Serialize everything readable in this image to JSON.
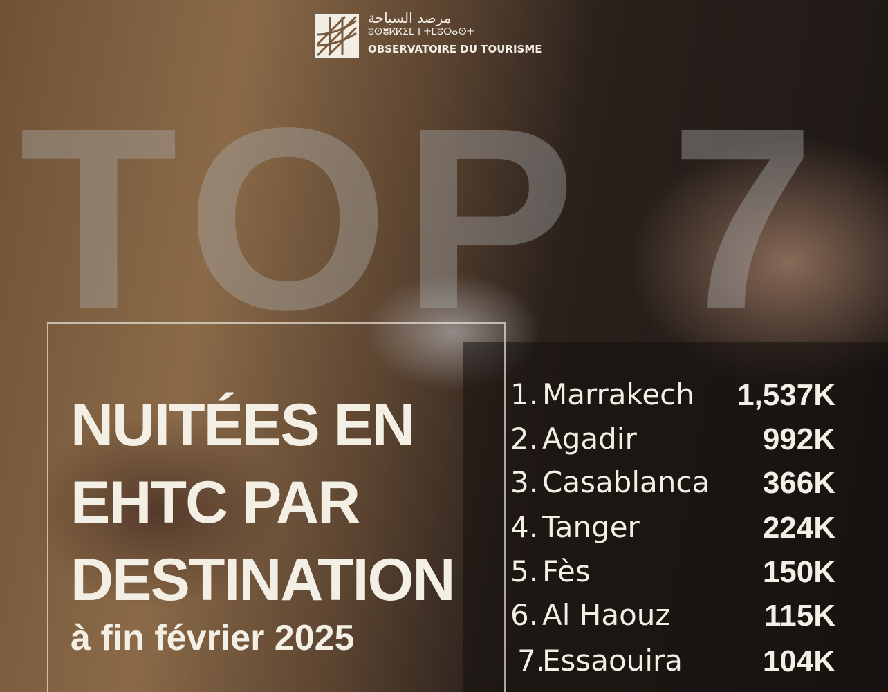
{
  "logo": {
    "arabic": "مرصد السياحة",
    "tifinagh": "ⵓⵙⴻⴽⴽⵉⵎ ⵏ ⵜⵎⵓⵔⴰⵙⵜ",
    "name": "OBSERVATOIRE DU TOURISME"
  },
  "headline": "TOP 7",
  "title": [
    "NUITÉES EN",
    "EHTC PAR",
    "DESTINATION"
  ],
  "subtitle": "à fin février 2025",
  "ranking": [
    {
      "rank": "1.",
      "destination": "Marrakech",
      "value": "1,537K"
    },
    {
      "rank": "2.",
      "destination": "Agadir",
      "value": "992K"
    },
    {
      "rank": "3.",
      "destination": "Casablanca",
      "value": "366K"
    },
    {
      "rank": "4.",
      "destination": "Tanger",
      "value": "224K"
    },
    {
      "rank": "5.",
      "destination": "Fès",
      "value": "150K"
    },
    {
      "rank": "6.",
      "destination": "Al Haouz",
      "value": "115K"
    },
    {
      "rank": "7.",
      "destination": "Essaouira",
      "value": "104K"
    }
  ]
}
